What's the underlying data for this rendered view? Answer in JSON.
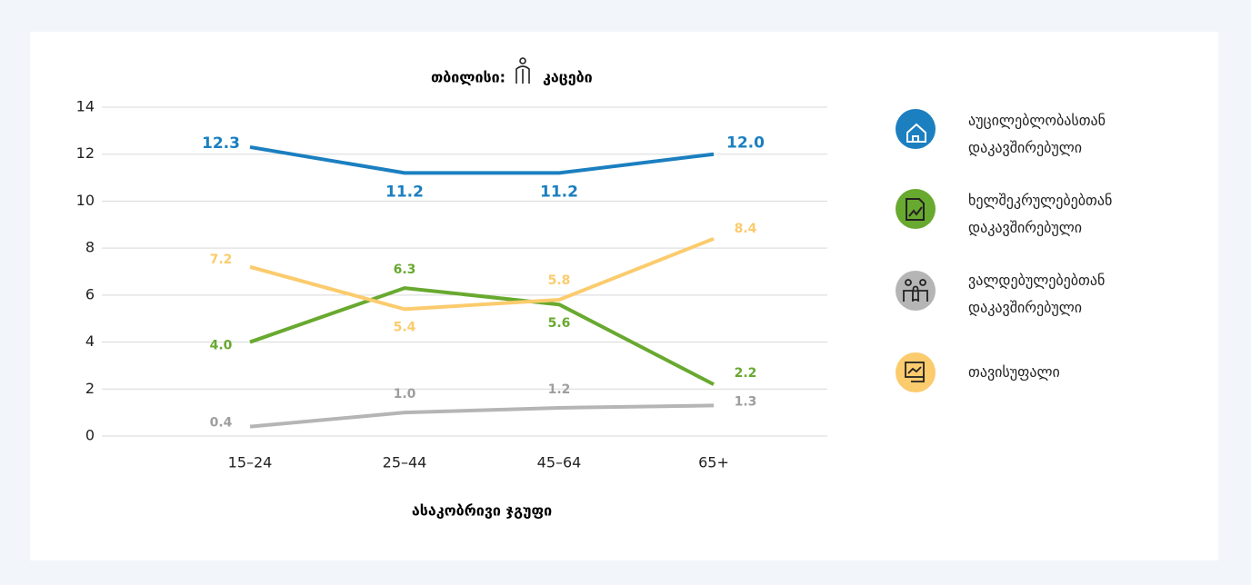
{
  "chart_data": {
    "type": "line",
    "title_parts": [
      "თბილისი:",
      "კაცები"
    ],
    "x_label": "ასაკობრივი ჯგუფი",
    "categories": [
      "15–24",
      "25–44",
      "45–64",
      "65+"
    ],
    "series": [
      {
        "name": "აუცილებლობასთან დაკავშირებული",
        "color": "#1b7fc0",
        "values": [
          12.3,
          11.2,
          11.2,
          12.0
        ],
        "value_labels": [
          "12.3",
          "11.2",
          "11.2",
          "12.0"
        ]
      },
      {
        "name": "ხელშეკრულებებთან დაკავშირებული",
        "color": "#68a92f",
        "values": [
          4.0,
          6.3,
          5.6,
          2.2
        ],
        "value_labels": [
          "4.0",
          "6.3",
          "5.6",
          "2.2"
        ]
      },
      {
        "name": "ვალდებულებებთან დაკავშირებული",
        "color": "#b5b5b5",
        "values": [
          0.4,
          1.0,
          1.2,
          1.3
        ],
        "value_labels": [
          "0.4",
          "1.0",
          "1.2",
          "1.3"
        ]
      },
      {
        "name": "თავისუფალი",
        "color": "#fbcb6d",
        "values": [
          7.2,
          5.4,
          5.8,
          8.4
        ],
        "value_labels": [
          "7.2",
          "5.4",
          "5.8",
          "8.4"
        ]
      }
    ],
    "ylim": [
      0,
      14
    ],
    "yticks": [
      0,
      2,
      4,
      6,
      8,
      10,
      12,
      14
    ],
    "grid": true,
    "legend": "right"
  }
}
